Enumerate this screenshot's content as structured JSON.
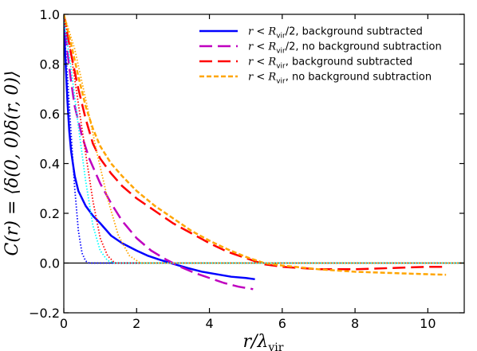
{
  "chart_data": {
    "type": "line",
    "xlabel": {
      "main": "r/λ",
      "sub": "vir"
    },
    "ylabel": "C(r) = ⟨δ(0, 0)δ(r, 0)⟩",
    "xlim": [
      0,
      11
    ],
    "ylim": [
      -0.2,
      1.0
    ],
    "xticks": [
      0,
      2,
      4,
      6,
      8,
      10
    ],
    "yticks": [
      -0.2,
      0.0,
      0.2,
      0.4,
      0.6,
      0.8,
      1.0
    ],
    "xtick_labels": [
      "0",
      "2",
      "4",
      "6",
      "8",
      "10"
    ],
    "ytick_labels": [
      "−0.2",
      "0.0",
      "0.2",
      "0.4",
      "0.6",
      "0.8",
      "1.0"
    ],
    "legend_position": "top-right",
    "zero_line": {
      "y": 0,
      "color": "#000000"
    },
    "series": [
      {
        "name": "r < R_vir/2, background subtracted",
        "legend": {
          "pre": "r",
          "mid": " < R",
          "sub": "vir",
          "post": "/2, background subtracted"
        },
        "color": "#0000ff",
        "style": "solid",
        "width": 2.5,
        "x": [
          0,
          0.05,
          0.1,
          0.15,
          0.2,
          0.3,
          0.4,
          0.5,
          0.6,
          0.8,
          1.0,
          1.3,
          1.6,
          2.0,
          2.3,
          2.6,
          3.0,
          3.4,
          3.8,
          4.2,
          4.6,
          5.0,
          5.25
        ],
        "y": [
          0.97,
          0.8,
          0.65,
          0.53,
          0.45,
          0.35,
          0.29,
          0.26,
          0.23,
          0.19,
          0.16,
          0.11,
          0.08,
          0.05,
          0.03,
          0.015,
          -0.003,
          -0.02,
          -0.035,
          -0.045,
          -0.055,
          -0.06,
          -0.065
        ]
      },
      {
        "name": "r < R_vir/2, no background subtraction",
        "legend": {
          "pre": "r",
          "mid": " < R",
          "sub": "vir",
          "post": "/2, no background subtraction"
        },
        "color": "#bf00bf",
        "style": "dash",
        "width": 2.5,
        "x": [
          0,
          0.1,
          0.2,
          0.3,
          0.5,
          0.7,
          1.0,
          1.3,
          1.6,
          2.0,
          2.4,
          2.8,
          3.2,
          3.6,
          4.0,
          4.4,
          4.8,
          5.2
        ],
        "y": [
          1.0,
          0.85,
          0.73,
          0.63,
          0.51,
          0.42,
          0.32,
          0.24,
          0.17,
          0.1,
          0.05,
          0.015,
          -0.015,
          -0.04,
          -0.06,
          -0.08,
          -0.095,
          -0.105
        ]
      },
      {
        "name": "r < R_vir, background subtracted",
        "legend": {
          "pre": "r",
          "mid": " < R",
          "sub": "vir",
          "post": ", background subtracted"
        },
        "color": "#ff0000",
        "style": "dash",
        "width": 2.5,
        "x": [
          0,
          0.2,
          0.4,
          0.6,
          0.8,
          1.0,
          1.3,
          1.6,
          2.0,
          2.5,
          3.0,
          3.5,
          4.0,
          4.5,
          5.0,
          5.5,
          6.0,
          7.0,
          8.0,
          9.0,
          10.0,
          10.5
        ],
        "y": [
          1.0,
          0.84,
          0.7,
          0.58,
          0.48,
          0.42,
          0.36,
          0.31,
          0.26,
          0.21,
          0.16,
          0.12,
          0.08,
          0.045,
          0.02,
          -0.005,
          -0.015,
          -0.025,
          -0.025,
          -0.02,
          -0.015,
          -0.015
        ]
      },
      {
        "name": "r < R_vir, no background subtraction",
        "legend": {
          "pre": "r",
          "mid": " < R",
          "sub": "vir",
          "post": ", no background subtraction"
        },
        "color": "#ffa500",
        "style": "short-dash",
        "width": 2.5,
        "x": [
          0,
          0.2,
          0.4,
          0.6,
          0.8,
          1.0,
          1.3,
          1.6,
          2.0,
          2.5,
          3.0,
          3.5,
          4.0,
          4.5,
          5.0,
          5.5,
          6.0,
          7.0,
          8.0,
          9.0,
          10.0,
          10.5
        ],
        "y": [
          1.0,
          0.88,
          0.75,
          0.63,
          0.54,
          0.47,
          0.4,
          0.35,
          0.29,
          0.23,
          0.18,
          0.13,
          0.09,
          0.055,
          0.025,
          0.0,
          -0.01,
          -0.025,
          -0.035,
          -0.04,
          -0.045,
          -0.047
        ]
      }
    ],
    "extra_lines": [
      {
        "color": "#0000ff",
        "style": "dotted",
        "width": 1.8,
        "x": [
          0,
          0.1,
          0.2,
          0.3,
          0.4,
          0.5,
          0.6,
          0.7,
          11
        ],
        "y": [
          0.96,
          0.75,
          0.52,
          0.3,
          0.13,
          0.04,
          0.008,
          0.0,
          0.0
        ]
      },
      {
        "color": "#00ffff",
        "style": "dotted",
        "width": 1.8,
        "x": [
          0,
          0.2,
          0.4,
          0.6,
          0.8,
          1.0,
          1.2,
          1.4,
          11
        ],
        "y": [
          0.98,
          0.78,
          0.55,
          0.33,
          0.15,
          0.05,
          0.01,
          0.0,
          0.0
        ]
      },
      {
        "color": "#ff0000",
        "style": "dotted",
        "width": 1.8,
        "x": [
          0,
          0.2,
          0.4,
          0.6,
          0.8,
          1.0,
          1.2,
          1.4,
          11
        ],
        "y": [
          1.0,
          0.84,
          0.64,
          0.44,
          0.25,
          0.1,
          0.03,
          0.0,
          0.0
        ]
      },
      {
        "color": "#ffa500",
        "style": "dotted",
        "width": 1.8,
        "x": [
          0,
          0.3,
          0.6,
          0.9,
          1.2,
          1.5,
          1.8,
          2.1,
          11
        ],
        "y": [
          1.0,
          0.86,
          0.66,
          0.45,
          0.26,
          0.11,
          0.03,
          0.0,
          0.0
        ]
      }
    ]
  }
}
